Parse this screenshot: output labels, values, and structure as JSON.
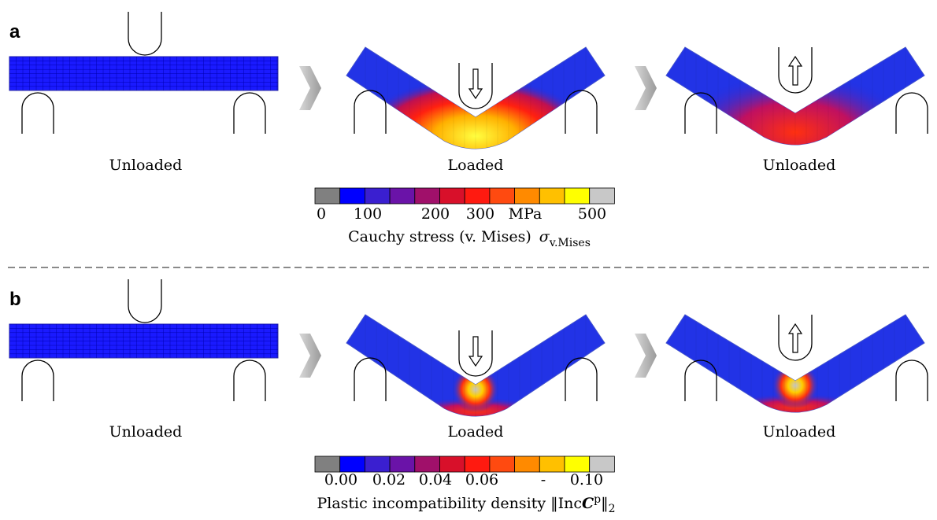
{
  "panels": [
    {
      "label": "a",
      "stages": [
        "Unloaded",
        "Loaded",
        "Unloaded"
      ],
      "colorbar": {
        "tick_labels": [
          "0",
          "100",
          "200",
          "300",
          "MPa",
          "500"
        ],
        "caption": {
          "text": "Cauchy stress (v. Mises)",
          "symbol": "σ",
          "subscript": "v.Mises"
        }
      }
    },
    {
      "label": "b",
      "stages": [
        "Unloaded",
        "Loaded",
        "Unloaded"
      ],
      "colorbar": {
        "tick_labels": [
          "0.00",
          "0.02",
          "0.04",
          "0.06",
          "-",
          "0.10"
        ],
        "caption": {
          "text": "Plastic incompatibility density ‖Inc",
          "symbol": "C",
          "superscript": "p",
          "close": "‖",
          "subscript": "2"
        }
      }
    }
  ]
}
